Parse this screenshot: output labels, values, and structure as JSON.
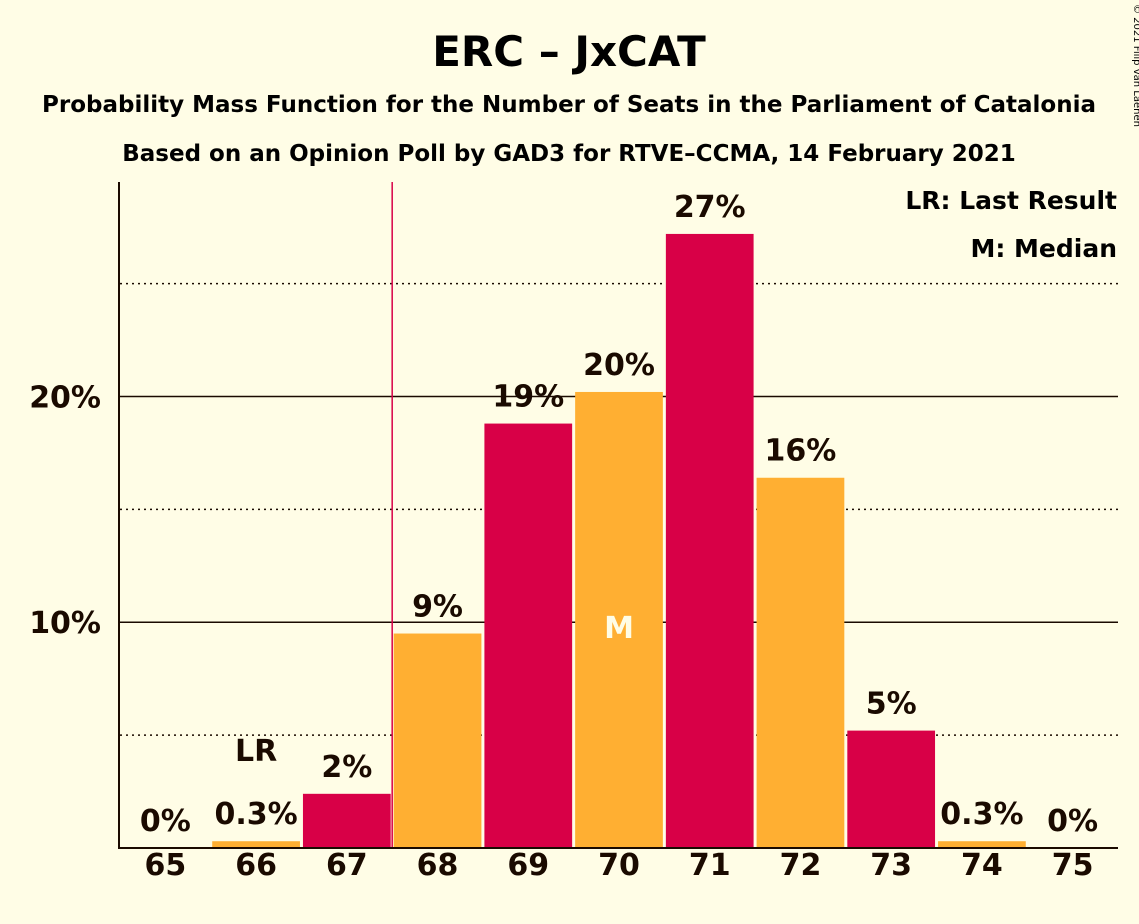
{
  "chart_data": {
    "type": "bar",
    "title": "ERC – JxCAT",
    "subtitle": "Probability Mass Function for the Number of Seats in the Parliament of Catalonia",
    "subtitle2": "Based on an Opinion Poll by GAD3 for RTVE–CCMA, 14 February 2021",
    "categories": [
      "65",
      "66",
      "67",
      "68",
      "69",
      "70",
      "71",
      "72",
      "73",
      "74",
      "75"
    ],
    "values": [
      0,
      0.3,
      2.4,
      9.5,
      18.8,
      20.2,
      27.2,
      16.4,
      5.2,
      0.3,
      0
    ],
    "data_labels": [
      "0%",
      "0.3%",
      "2%",
      "9%",
      "19%",
      "20%",
      "27%",
      "16%",
      "5%",
      "0.3%",
      "0%"
    ],
    "bar_colors": [
      "#D80047",
      "#FFAF32",
      "#D80047",
      "#FFAF32",
      "#D80047",
      "#FFAF32",
      "#D80047",
      "#FFAF32",
      "#D80047",
      "#FFAF32",
      "#D80047"
    ],
    "y_ticks": [
      {
        "value": 10,
        "label": "10%"
      },
      {
        "value": 20,
        "label": "20%"
      }
    ],
    "y_minor_ticks": [
      5,
      15,
      25
    ],
    "ylim": [
      0,
      29.5
    ],
    "last_result": {
      "category": "66",
      "label": "LR"
    },
    "median": {
      "category": "70",
      "label": "M"
    },
    "majority_line_after": "67",
    "legend": {
      "placement": "top-right",
      "items": [
        "LR: Last Result",
        "M: Median"
      ]
    },
    "grid": true,
    "colors": {
      "background": "#FFFDE6",
      "text": "#1a0a00",
      "majority_line": "#D80047"
    }
  },
  "copyright": "© 2021 Filip van Laenen"
}
